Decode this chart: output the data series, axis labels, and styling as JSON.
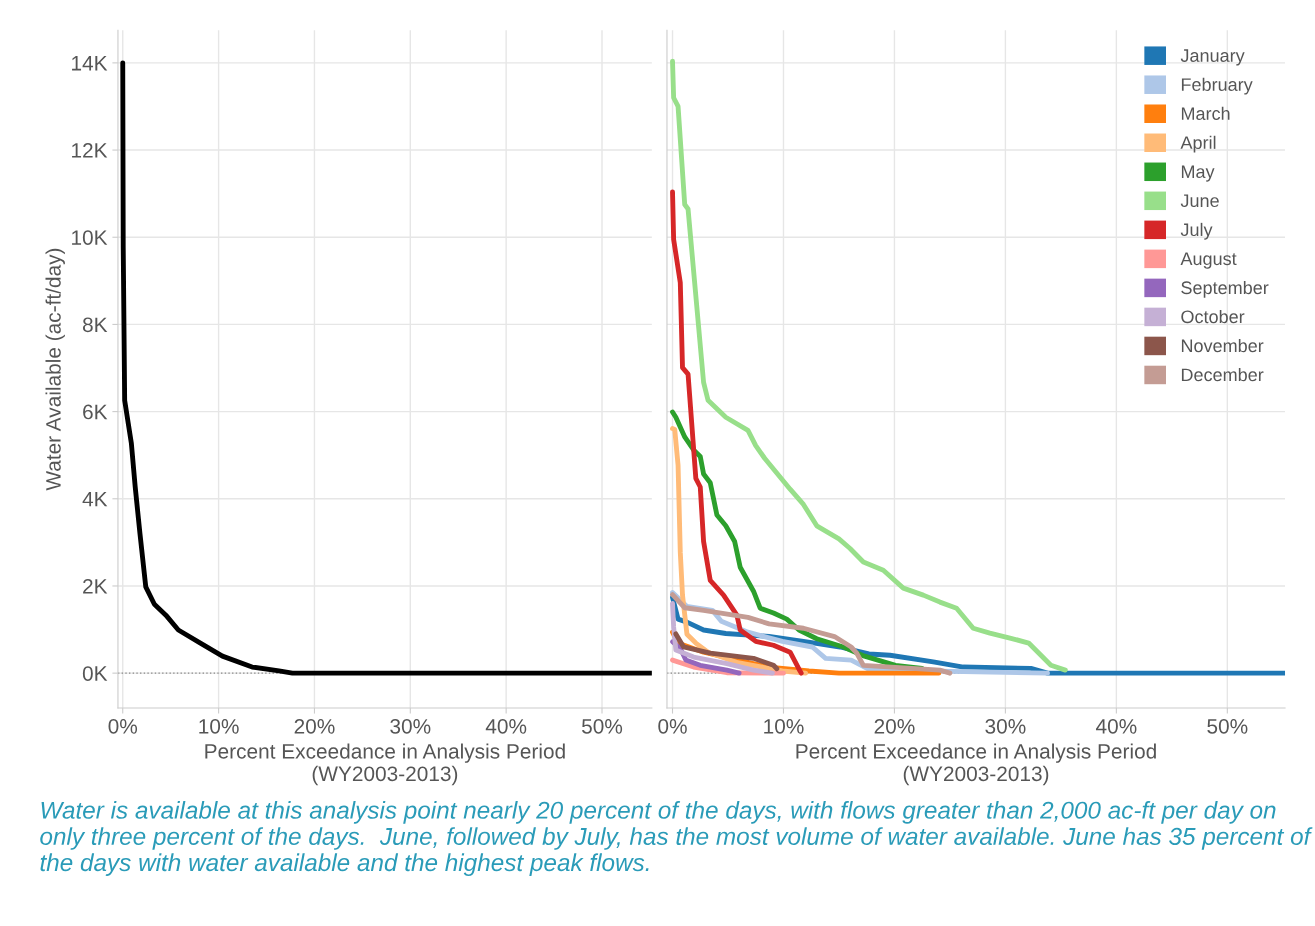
{
  "chart_data": [
    {
      "type": "line",
      "ylabel": "Water Available (ac-ft/day)",
      "xlabel": "Percent Exceedance in Analysis Period\n(WY2003-2013)",
      "xlim": [
        -0.5,
        55.2
      ],
      "ylim": [
        -800,
        14750
      ],
      "xticks": [
        {
          "value": 0,
          "label": "0%"
        },
        {
          "value": 10,
          "label": "10%"
        },
        {
          "value": 20,
          "label": "20%"
        },
        {
          "value": 30,
          "label": "30%"
        },
        {
          "value": 40,
          "label": "40%"
        },
        {
          "value": 50,
          "label": "50%"
        }
      ],
      "yticks": [
        {
          "value": 0,
          "label": "0K"
        },
        {
          "value": 2000,
          "label": "2K"
        },
        {
          "value": 4000,
          "label": "4K"
        },
        {
          "value": 6000,
          "label": "6K"
        },
        {
          "value": 8000,
          "label": "8K"
        },
        {
          "value": 10000,
          "label": "10K"
        },
        {
          "value": 12000,
          "label": "12K"
        },
        {
          "value": 14000,
          "label": "14K"
        }
      ],
      "grid": true,
      "legend": false,
      "marker": "none",
      "line_style": "solid",
      "ref_lines": [
        {
          "axis": "y",
          "value": 0,
          "label": null,
          "color": "#888888",
          "line_style": "dotted"
        }
      ],
      "series": [
        {
          "color": "#000000",
          "x": [
            0,
            0.05,
            0.2,
            0.9,
            1.3,
            1.8,
            2.4,
            3.3,
            4.5,
            5.8,
            8.1,
            10.4,
            13.5,
            16.3,
            17.7,
            55.2
          ],
          "values": [
            14000,
            9760,
            6260,
            5270,
            4270,
            3190,
            1980,
            1580,
            1330,
            990,
            690,
            390,
            140,
            50,
            0,
            0
          ]
        }
      ]
    },
    {
      "type": "line",
      "xlabel": "Percent Exceedance in Analysis Period\n(WY2003-2013)",
      "xlim": [
        -0.5,
        55.2
      ],
      "ylim": [
        -800,
        14750
      ],
      "tick_labels": "x",
      "xticks": [
        {
          "value": 0,
          "label": "0%"
        },
        {
          "value": 10,
          "label": "10%"
        },
        {
          "value": 20,
          "label": "20%"
        },
        {
          "value": 30,
          "label": "30%"
        },
        {
          "value": 40,
          "label": "40%"
        },
        {
          "value": 50,
          "label": "50%"
        }
      ],
      "yticks": [
        {
          "value": 0,
          "label": null
        },
        {
          "value": 2000,
          "label": null
        },
        {
          "value": 4000,
          "label": null
        },
        {
          "value": 6000,
          "label": null
        },
        {
          "value": 8000,
          "label": null
        },
        {
          "value": 10000,
          "label": null
        },
        {
          "value": 12000,
          "label": null
        },
        {
          "value": 14000,
          "label": null
        }
      ],
      "grid": true,
      "legend": "top right",
      "marker": "none",
      "line_style": "solid",
      "ref_lines": [
        {
          "axis": "y",
          "value": 0,
          "label": null,
          "color": "#888888",
          "line_style": "dotted"
        }
      ],
      "annotations": [
        "Water is available at this analysis point nearly 20 percent of the days, with flows greater than 2,000 ac-ft per day on only three percent of the days.  June, followed by July, has the most volume of water available. June has 35 percent of the days with water available and the highest peak flows."
      ],
      "series": [
        {
          "name": "January",
          "color": "#1f77b4",
          "x": [
            0,
            0.5,
            1.3,
            2.8,
            4.8,
            8.7,
            11.8,
            15.1,
            17.7,
            19.6,
            23.5,
            26.2,
            32.3,
            33.8,
            55.2
          ],
          "values": [
            1740,
            1240,
            1170,
            990,
            910,
            840,
            730,
            600,
            440,
            410,
            260,
            140,
            110,
            0,
            0
          ]
        },
        {
          "name": "February",
          "color": "#aec7e8",
          "x": [
            0,
            1.3,
            3.6,
            4.4,
            6.8,
            9.9,
            12.6,
            13.8,
            16.1,
            17.7,
            25,
            33.8
          ],
          "values": [
            1850,
            1530,
            1440,
            1190,
            940,
            730,
            600,
            340,
            300,
            90,
            40,
            0
          ]
        },
        {
          "name": "March",
          "color": "#ff7f0e",
          "x": [
            0,
            0.5,
            2.8,
            5.9,
            8.7,
            12.3,
            15.0,
            24
          ],
          "values": [
            940,
            690,
            480,
            300,
            140,
            50,
            0,
            0
          ]
        },
        {
          "name": "April",
          "color": "#ffbb78",
          "x": [
            0,
            0.2,
            0.5,
            0.7,
            0.9,
            1.3,
            2.1,
            3.2,
            5.9,
            9.9,
            12
          ],
          "values": [
            5610,
            5590,
            4770,
            2770,
            1790,
            890,
            690,
            480,
            240,
            50,
            0
          ]
        },
        {
          "name": "May",
          "color": "#2ca02c",
          "x": [
            0,
            0.3,
            1.1,
            1.9,
            2.5,
            2.8,
            3.4,
            4.0,
            4.8,
            5.6,
            6.1,
            7.3,
            7.9,
            9.1,
            10.3,
            11.4,
            13.0,
            15.4,
            17.3,
            20.1,
            22.5
          ],
          "values": [
            5990,
            5870,
            5420,
            5120,
            4970,
            4570,
            4370,
            3630,
            3380,
            3020,
            2430,
            1880,
            1490,
            1380,
            1240,
            990,
            790,
            600,
            390,
            180,
            110
          ]
        },
        {
          "name": "June",
          "color": "#98df8a",
          "x": [
            0,
            0.1,
            0.5,
            1.1,
            1.4,
            2.8,
            3.2,
            4.8,
            6.8,
            7.5,
            8.3,
            10.6,
            11.8,
            13.0,
            15.0,
            16.0,
            17.2,
            19.0,
            20.8,
            22.6,
            24.1,
            25.6,
            27.1,
            28.6,
            30.5,
            32.1,
            34.1,
            35.4
          ],
          "values": [
            14040,
            13200,
            13000,
            10750,
            10650,
            6670,
            6260,
            5870,
            5570,
            5220,
            4930,
            4220,
            3870,
            3380,
            3080,
            2860,
            2550,
            2360,
            1950,
            1790,
            1630,
            1490,
            1030,
            920,
            800,
            690,
            180,
            70
          ]
        },
        {
          "name": "July",
          "color": "#d62728",
          "x": [
            0,
            0.1,
            0.7,
            0.9,
            1.4,
            2.1,
            2.5,
            2.8,
            3.4,
            4.6,
            5.8,
            6.1,
            7.5,
            9.1,
            10.6,
            11.4,
            11.6
          ],
          "values": [
            11040,
            9950,
            8960,
            7010,
            6860,
            4470,
            4270,
            3020,
            2130,
            1790,
            1330,
            990,
            730,
            640,
            480,
            90,
            0
          ]
        },
        {
          "name": "August",
          "color": "#ff9896",
          "x": [
            0,
            1.9,
            4.9,
            10
          ],
          "values": [
            300,
            140,
            10,
            0
          ]
        },
        {
          "name": "September",
          "color": "#9467bd",
          "x": [
            0,
            0.7,
            1.2,
            2.5,
            4.9,
            6
          ],
          "values": [
            720,
            570,
            300,
            180,
            70,
            0
          ]
        },
        {
          "name": "October",
          "color": "#c5b0d5",
          "x": [
            0,
            0.1,
            0.3,
            1.9,
            4.9,
            7.3,
            9
          ],
          "values": [
            1600,
            1060,
            530,
            370,
            220,
            70,
            0
          ]
        },
        {
          "name": "November",
          "color": "#8c564b",
          "x": [
            0.3,
            1.0,
            3.4,
            7.3,
            9.1,
            9.4
          ],
          "values": [
            900,
            600,
            460,
            340,
            180,
            100
          ]
        },
        {
          "name": "December",
          "color": "#c49c94",
          "x": [
            0,
            1.1,
            2.8,
            6.8,
            8.7,
            11.8,
            14.6,
            16.1,
            16.6,
            17.2,
            24.1,
            25
          ],
          "values": [
            1800,
            1500,
            1440,
            1280,
            1130,
            1030,
            840,
            600,
            460,
            180,
            70,
            0
          ]
        }
      ]
    }
  ]
}
